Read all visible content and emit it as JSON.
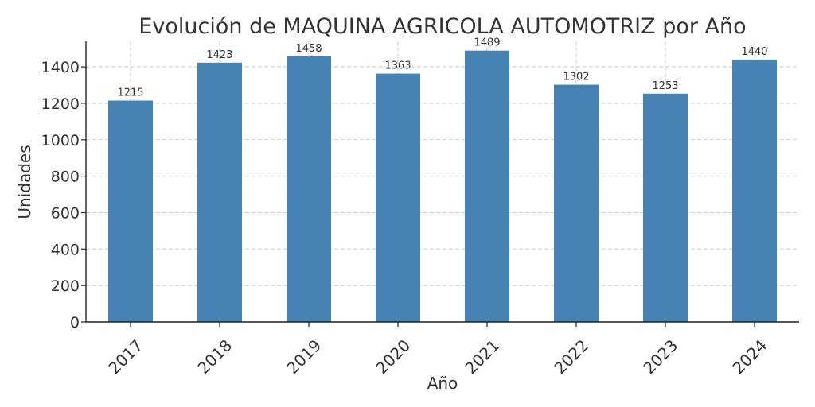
{
  "chart_data": {
    "type": "bar",
    "title": "Evolución de MAQUINA AGRICOLA AUTOMOTRIZ por Año",
    "xlabel": "Año",
    "ylabel": "Unidades",
    "categories": [
      "2017",
      "2018",
      "2019",
      "2020",
      "2021",
      "2022",
      "2023",
      "2024"
    ],
    "values": [
      1215,
      1423,
      1458,
      1363,
      1489,
      1302,
      1253,
      1440
    ],
    "data_labels": [
      "1215",
      "1423",
      "1458",
      "1363",
      "1489",
      "1302",
      "1253",
      "1440"
    ],
    "ylim": [
      0,
      1540
    ],
    "yticks": [
      0,
      200,
      400,
      600,
      800,
      1000,
      1200,
      1400
    ],
    "ytick_labels": [
      "0",
      "200",
      "400",
      "600",
      "800",
      "1000",
      "1200",
      "1400"
    ],
    "grid": true,
    "bar_color": "#4682b4"
  }
}
